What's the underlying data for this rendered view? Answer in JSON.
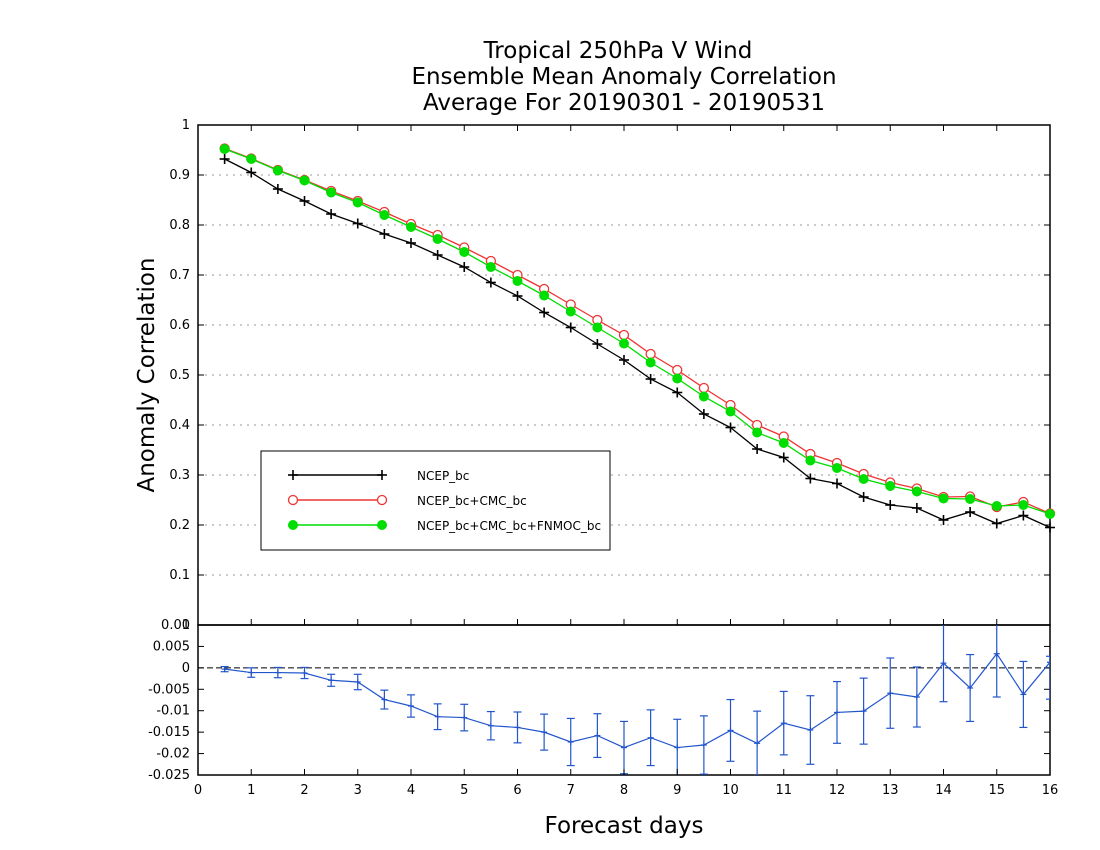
{
  "chart_data": [
    {
      "type": "line",
      "title": [
        "Tropical 250hPa V Wind",
        "Ensemble Mean Anomaly Correlation",
        "Average For 20190301 - 20190531"
      ],
      "xlabel": "Forecast days",
      "ylabel": "Anomaly Correlation",
      "xlim": [
        0,
        16
      ],
      "ylim": [
        0,
        1
      ],
      "x_ticks": [
        "0",
        "1",
        "2",
        "3",
        "4",
        "5",
        "6",
        "7",
        "8",
        "9",
        "10",
        "11",
        "12",
        "13",
        "14",
        "15",
        "16"
      ],
      "y_ticks": [
        "0",
        "0.1",
        "0.2",
        "0.3",
        "0.4",
        "0.5",
        "0.6",
        "0.7",
        "0.8",
        "0.9",
        "1"
      ],
      "grid": true,
      "legend": "center-left",
      "x": [
        0.5,
        1,
        1.5,
        2,
        2.5,
        3,
        3.5,
        4,
        4.5,
        5,
        5.5,
        6,
        6.5,
        7,
        7.5,
        8,
        8.5,
        9,
        9.5,
        10,
        10.5,
        11,
        11.5,
        12,
        12.5,
        13,
        13.5,
        14,
        14.5,
        15,
        15.5,
        16
      ],
      "series": [
        {
          "name": "NCEP_bc",
          "color": "#000000",
          "marker": "plus",
          "values": [
            0.932,
            0.905,
            0.872,
            0.848,
            0.822,
            0.803,
            0.782,
            0.764,
            0.74,
            0.716,
            0.685,
            0.658,
            0.625,
            0.595,
            0.562,
            0.53,
            0.492,
            0.465,
            0.422,
            0.395,
            0.352,
            0.335,
            0.293,
            0.283,
            0.256,
            0.24,
            0.234,
            0.21,
            0.226,
            0.203,
            0.219,
            0.195
          ]
        },
        {
          "name": "NCEP_bc+CMC_bc",
          "color": "#ee3333",
          "marker": "open-circle",
          "values": [
            0.953,
            0.933,
            0.91,
            0.89,
            0.868,
            0.848,
            0.826,
            0.802,
            0.78,
            0.755,
            0.728,
            0.7,
            0.672,
            0.641,
            0.61,
            0.58,
            0.542,
            0.51,
            0.474,
            0.44,
            0.4,
            0.377,
            0.342,
            0.324,
            0.302,
            0.285,
            0.273,
            0.256,
            0.257,
            0.236,
            0.246,
            0.223
          ]
        },
        {
          "name": "NCEP_bc+CMC_bc+FNMOC_bc",
          "color": "#00dd00",
          "marker": "filled-circle",
          "values": [
            0.952,
            0.932,
            0.909,
            0.889,
            0.865,
            0.845,
            0.82,
            0.796,
            0.772,
            0.746,
            0.716,
            0.688,
            0.659,
            0.627,
            0.595,
            0.563,
            0.525,
            0.493,
            0.457,
            0.427,
            0.385,
            0.364,
            0.329,
            0.314,
            0.292,
            0.278,
            0.267,
            0.253,
            0.252,
            0.238,
            0.24,
            0.222
          ]
        }
      ]
    },
    {
      "type": "line",
      "xlim": [
        0,
        16
      ],
      "ylim": [
        -0.025,
        0.01
      ],
      "y_ticks": [
        "0.01",
        "0.005",
        "0",
        "-0.005",
        "-0.01",
        "-0.015",
        "-0.02",
        "-0.025"
      ],
      "reference_line": 0,
      "color": "#2255cc",
      "x": [
        0.5,
        1,
        1.5,
        2,
        2.5,
        3,
        3.5,
        4,
        4.5,
        5,
        5.5,
        6,
        6.5,
        7,
        7.5,
        8,
        8.5,
        9,
        9.5,
        10,
        10.5,
        11,
        11.5,
        12,
        12.5,
        13,
        13.5,
        14,
        14.5,
        15,
        15.5,
        16
      ],
      "values": [
        -0.0003,
        -0.0011,
        -0.0011,
        -0.0012,
        -0.0029,
        -0.0033,
        -0.0074,
        -0.0089,
        -0.0114,
        -0.0116,
        -0.0135,
        -0.0139,
        -0.015,
        -0.0173,
        -0.0158,
        -0.0186,
        -0.0163,
        -0.0186,
        -0.018,
        -0.0146,
        -0.0176,
        -0.0129,
        -0.0145,
        -0.0104,
        -0.0101,
        -0.0059,
        -0.0068,
        0.0011,
        -0.0047,
        0.0033,
        -0.0062,
        0.0013
      ],
      "error_low": [
        -0.0009,
        -0.0022,
        -0.0023,
        -0.0025,
        -0.0043,
        -0.0051,
        -0.0096,
        -0.0115,
        -0.0144,
        -0.0147,
        -0.0168,
        -0.0175,
        -0.0192,
        -0.0228,
        -0.0209,
        -0.0247,
        -0.0228,
        -0.0252,
        -0.0248,
        -0.0218,
        -0.0251,
        -0.0203,
        -0.0225,
        -0.0176,
        -0.0178,
        -0.0141,
        -0.0138,
        -0.0079,
        -0.0125,
        -0.0068,
        -0.0139,
        -0.0073
      ],
      "error_high": [
        0.0003,
        0,
        0.0001,
        0.0001,
        -0.0015,
        -0.0015,
        -0.0052,
        -0.0063,
        -0.0084,
        -0.0085,
        -0.0102,
        -0.0103,
        -0.0108,
        -0.0118,
        -0.0107,
        -0.0125,
        -0.0098,
        -0.012,
        -0.0112,
        -0.0074,
        -0.0101,
        -0.0055,
        -0.0065,
        -0.0032,
        -0.0024,
        0.0023,
        0.0002,
        0.0101,
        0.0031,
        0.0136,
        0.0015,
        0.0027
      ]
    }
  ]
}
